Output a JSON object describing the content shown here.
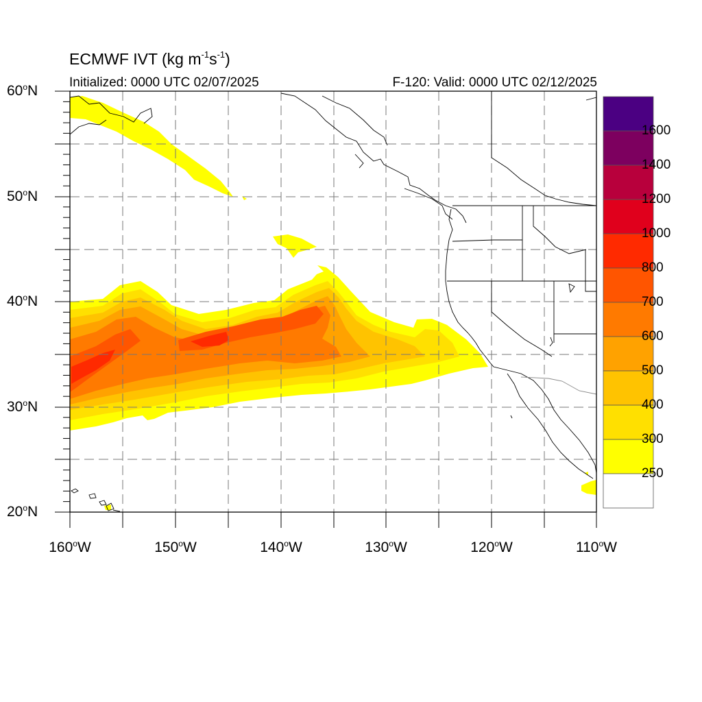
{
  "header": {
    "title_main": "ECMWF IVT (kg m",
    "title_exp1": "-1",
    "title_mid": "s",
    "title_exp2": "-1",
    "title_end": ")",
    "initialized": "Initialized: 0000 UTC 02/07/2025",
    "valid": "F-120: Valid: 0000 UTC 02/12/2025"
  },
  "map": {
    "lat_labels": [
      {
        "num": "60",
        "hem": "N"
      },
      {
        "num": "50",
        "hem": "N"
      },
      {
        "num": "40",
        "hem": "N"
      },
      {
        "num": "30",
        "hem": "N"
      },
      {
        "num": "20",
        "hem": "N"
      }
    ],
    "lon_labels": [
      {
        "num": "160",
        "hem": "W"
      },
      {
        "num": "150",
        "hem": "W"
      },
      {
        "num": "140",
        "hem": "W"
      },
      {
        "num": "130",
        "hem": "W"
      },
      {
        "num": "120",
        "hem": "W"
      },
      {
        "num": "110",
        "hem": "W"
      }
    ],
    "lon_range": [
      -160,
      -110
    ],
    "lat_range": [
      20,
      60
    ]
  },
  "colorbar": {
    "labels": [
      "1600",
      "1400",
      "1200",
      "1000",
      "800",
      "700",
      "600",
      "500",
      "400",
      "300",
      "250"
    ],
    "colors_top_to_bottom": [
      "#4b0082",
      "#7d005f",
      "#b8003c",
      "#e0001c",
      "#ff2a00",
      "#ff5500",
      "#ff7a00",
      "#ffa200",
      "#ffc300",
      "#ffe000",
      "#ffff00",
      "#ffffff"
    ]
  },
  "ivt_colors": {
    "c250": "#ffff00",
    "c300": "#ffe000",
    "c400": "#ffc300",
    "c500": "#ffa200",
    "c600": "#ff7a00",
    "c700": "#ff5500",
    "c800": "#ff2a00"
  }
}
